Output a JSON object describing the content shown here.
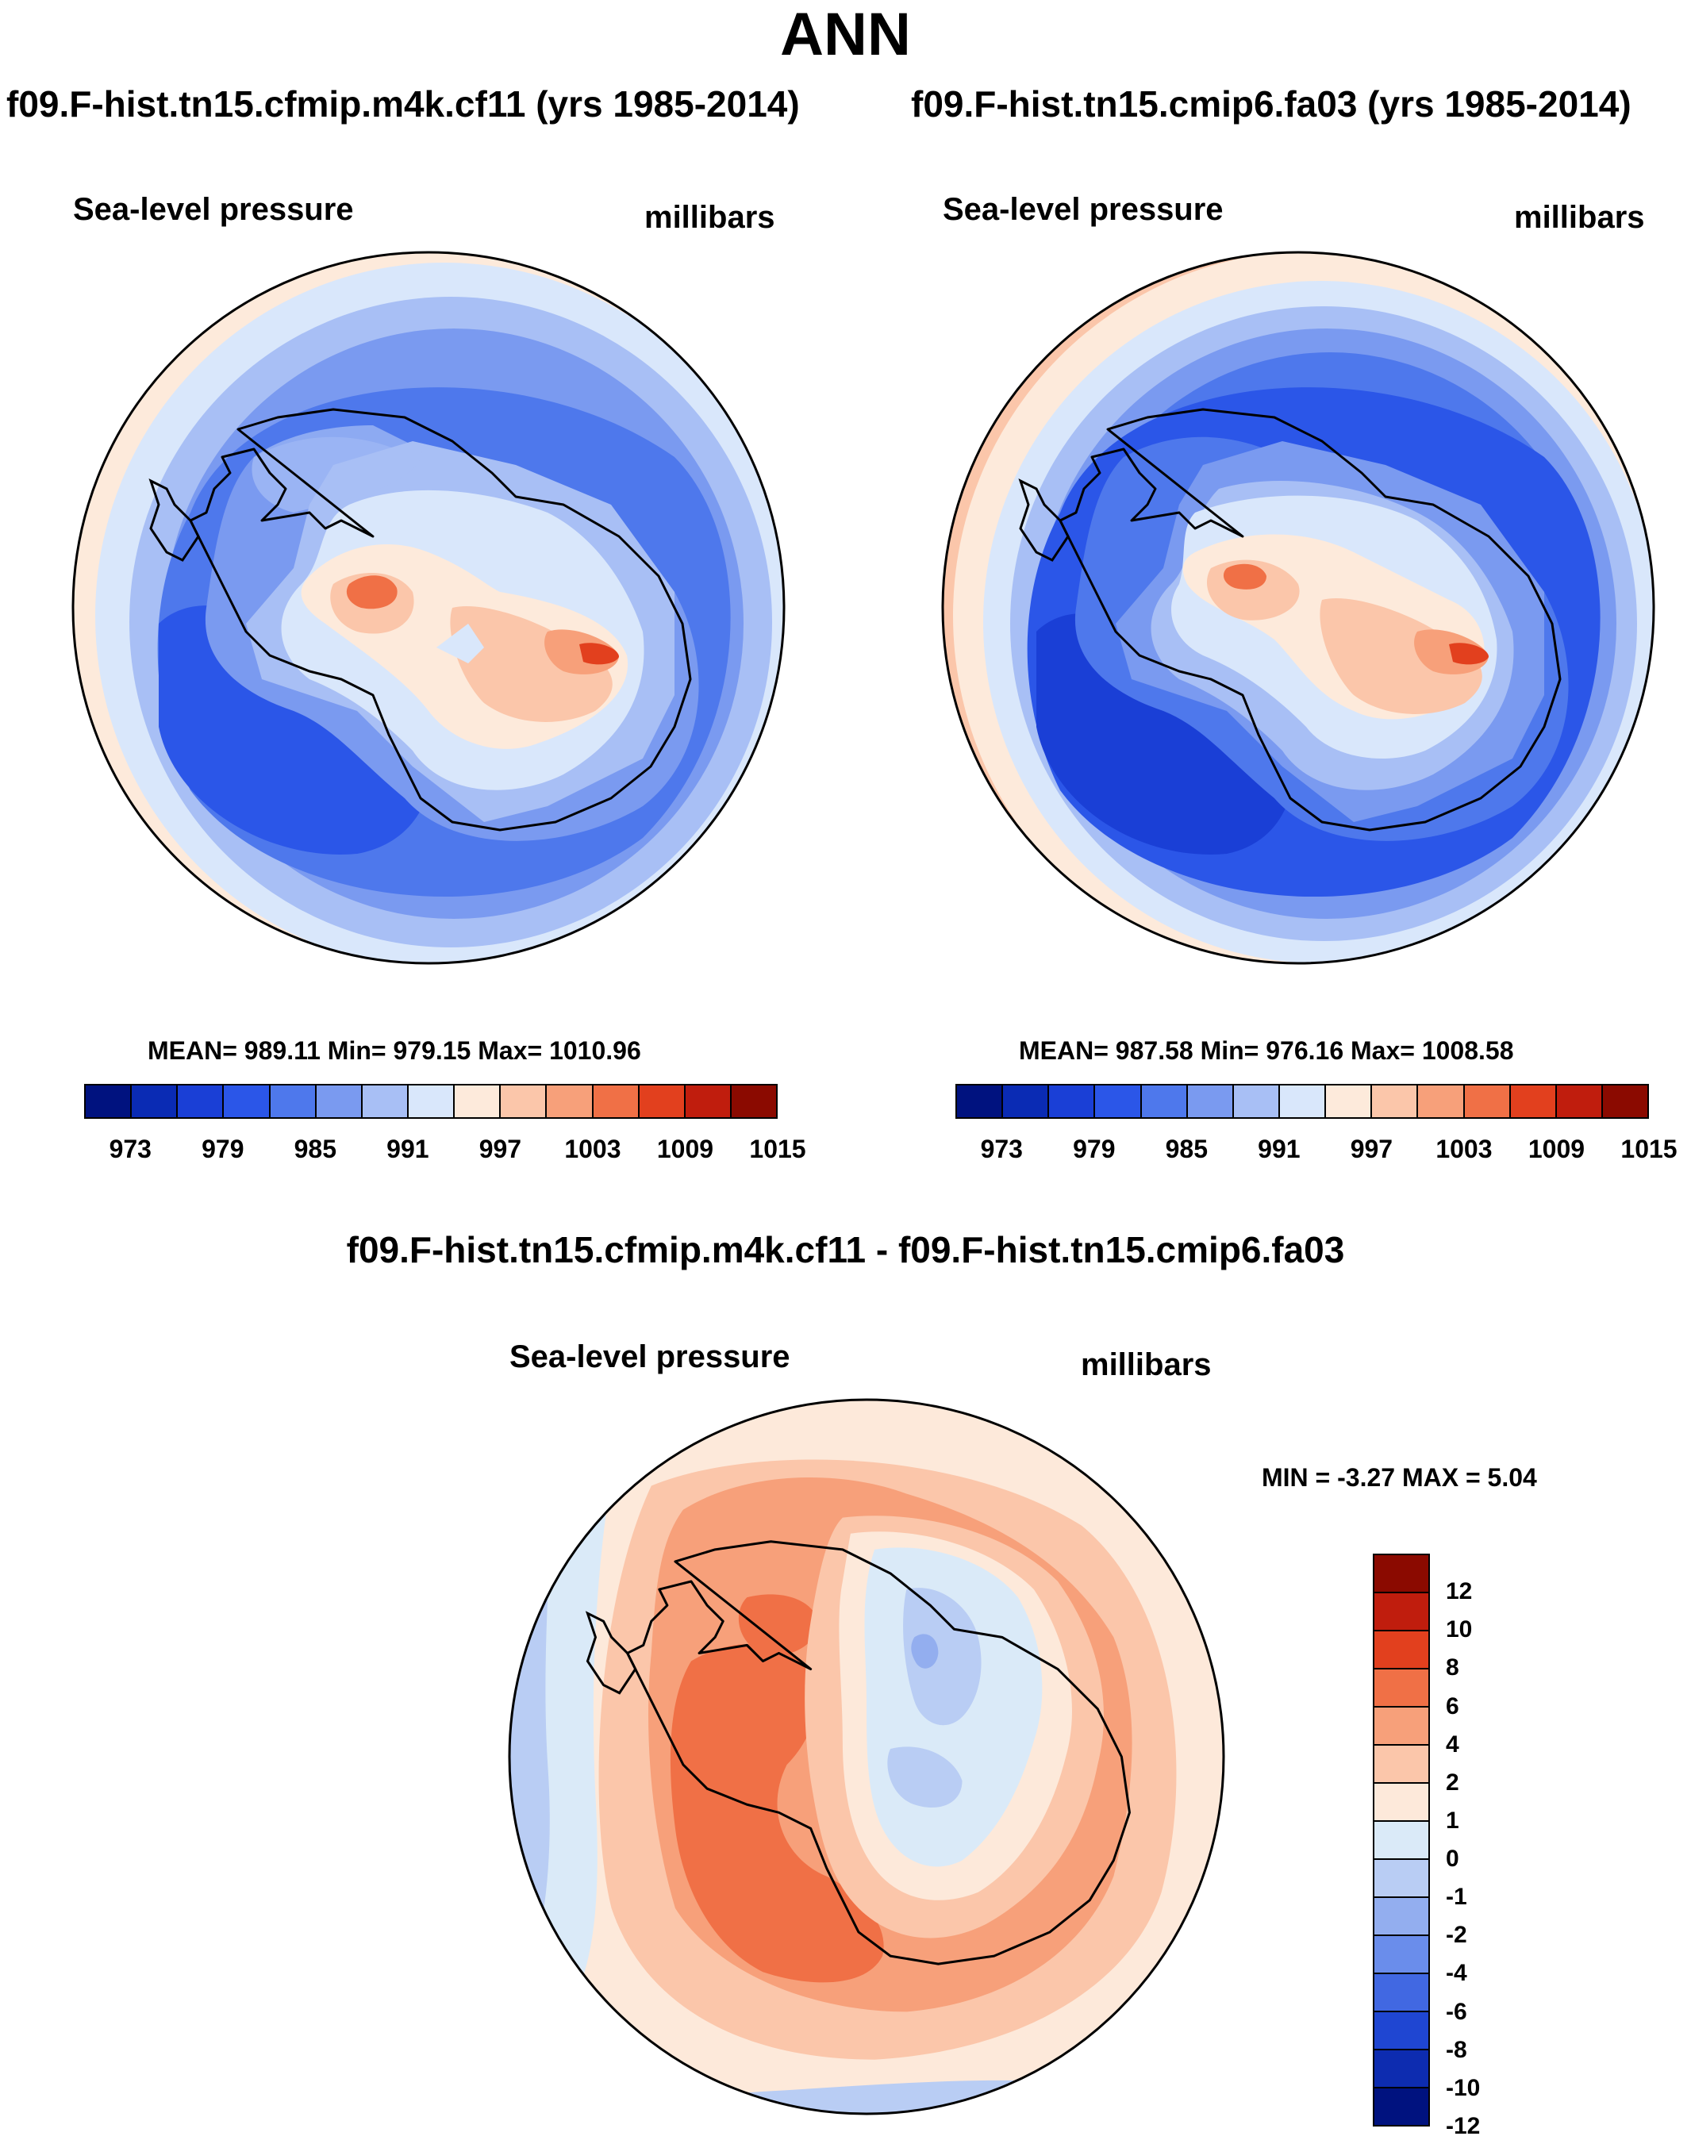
{
  "figure": {
    "title": "ANN",
    "difference_title": "f09.F-hist.tn15.cfmip.m4k.cf11 - f09.F-hist.tn15.cmip6.fa03"
  },
  "colors": {
    "abs_scale": [
      "#00127f",
      "#0a2bb4",
      "#1a3fd6",
      "#2b56e8",
      "#4e78ec",
      "#7a9af0",
      "#a8bff5",
      "#d9e7fb",
      "#fdeadb",
      "#fbc6aa",
      "#f7a07a",
      "#f07046",
      "#e2401e",
      "#c01d0d",
      "#8b0a00"
    ],
    "diff_scale": [
      "#8b0a00",
      "#c01d0d",
      "#e2401e",
      "#f07046",
      "#f7a07a",
      "#fbc6aa",
      "#fde9da",
      "#daeaf8",
      "#b9cdf4",
      "#93aeef",
      "#6a8deb",
      "#4168e2",
      "#1f46d2",
      "#0d2cb0",
      "#00127f"
    ]
  },
  "panels": [
    {
      "run_title": "f09.F-hist.tn15.cfmip.m4k.cf11 (yrs 1985-2014)",
      "variable": "Sea-level pressure",
      "units": "millibars",
      "stats": "MEAN= 989.11  Min= 979.15  Max= 1010.96",
      "colorbar_ticks": [
        "973",
        "979",
        "985",
        "991",
        "997",
        "1003",
        "1009",
        "1015"
      ]
    },
    {
      "run_title": "f09.F-hist.tn15.cmip6.fa03 (yrs 1985-2014)",
      "variable": "Sea-level pressure",
      "units": "millibars",
      "stats": "MEAN= 987.58  Min= 976.16  Max= 1008.58",
      "colorbar_ticks": [
        "973",
        "979",
        "985",
        "991",
        "997",
        "1003",
        "1009",
        "1015"
      ]
    },
    {
      "variable": "Sea-level pressure",
      "units": "millibars",
      "stats": "MIN =  -3.27 MAX =   5.04",
      "colorbar_ticks": [
        "12",
        "10",
        "8",
        "6",
        "4",
        "2",
        "1",
        "0",
        "-1",
        "-2",
        "-4",
        "-6",
        "-8",
        "-10",
        "-12"
      ]
    }
  ]
}
